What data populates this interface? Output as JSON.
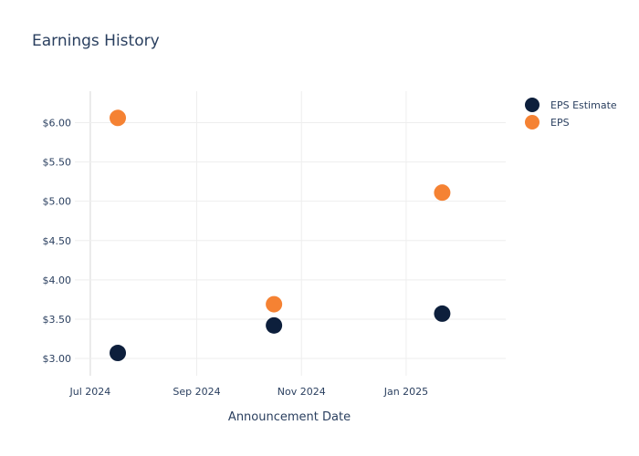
{
  "chart_data": {
    "type": "scatter",
    "title": "Earnings History",
    "xlabel": "Announcement Date",
    "ylabel": "",
    "x_axis": {
      "type": "date",
      "range": [
        "2024-06-22",
        "2025-02-28"
      ],
      "ticks": [
        {
          "date": "2024-07-01",
          "label": "Jul 2024"
        },
        {
          "date": "2024-09-01",
          "label": "Sep 2024"
        },
        {
          "date": "2024-11-01",
          "label": "Nov 2024"
        },
        {
          "date": "2025-01-01",
          "label": "Jan 2025"
        }
      ]
    },
    "y_axis": {
      "range": [
        2.78,
        6.4
      ],
      "ticks": [
        {
          "value": 3.0,
          "label": "$3.00"
        },
        {
          "value": 3.5,
          "label": "$3.50"
        },
        {
          "value": 4.0,
          "label": "$4.00"
        },
        {
          "value": 4.5,
          "label": "$4.50"
        },
        {
          "value": 5.0,
          "label": "$5.00"
        },
        {
          "value": 5.5,
          "label": "$5.50"
        },
        {
          "value": 6.0,
          "label": "$6.00"
        }
      ]
    },
    "grid": true,
    "legend_position": "top-right",
    "series": [
      {
        "name": "EPS Estimate",
        "color": "#0d1f3c",
        "points": [
          {
            "x": "2024-07-17",
            "y": 3.07
          },
          {
            "x": "2024-10-16",
            "y": 3.42
          },
          {
            "x": "2025-01-22",
            "y": 3.57
          }
        ]
      },
      {
        "name": "EPS",
        "color": "#f58233",
        "points": [
          {
            "x": "2024-07-17",
            "y": 6.06
          },
          {
            "x": "2024-10-16",
            "y": 3.69
          },
          {
            "x": "2025-01-22",
            "y": 5.11
          }
        ]
      }
    ]
  }
}
